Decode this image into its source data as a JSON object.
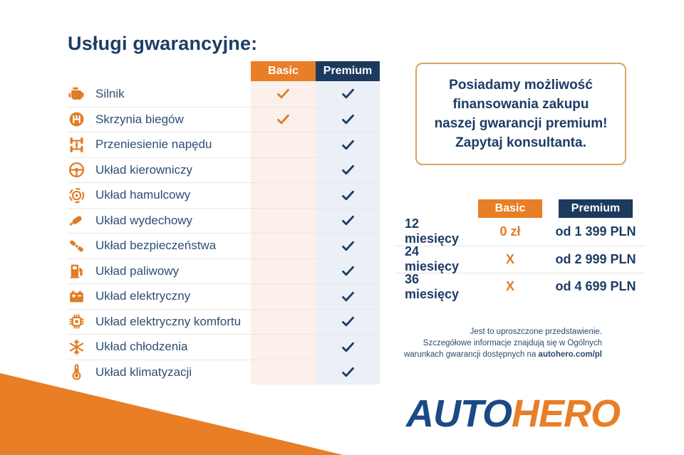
{
  "page": {
    "title": "Usługi gwarancyjne:"
  },
  "services": {
    "columns": [
      "Basic",
      "Premium"
    ],
    "rows": [
      {
        "icon": "engine-icon",
        "label": "Silnik",
        "basic": true,
        "premium": true
      },
      {
        "icon": "gearbox-icon",
        "label": "Skrzynia biegów",
        "basic": true,
        "premium": true
      },
      {
        "icon": "drivetrain-icon",
        "label": "Przeniesienie napędu",
        "basic": false,
        "premium": true
      },
      {
        "icon": "steering-wheel-icon",
        "label": "Układ kierowniczy",
        "basic": false,
        "premium": true
      },
      {
        "icon": "brake-disc-icon",
        "label": "Układ hamulcowy",
        "basic": false,
        "premium": true
      },
      {
        "icon": "exhaust-icon",
        "label": "Układ wydechowy",
        "basic": false,
        "premium": true
      },
      {
        "icon": "seatbelt-icon",
        "label": "Układ bezpieczeństwa",
        "basic": false,
        "premium": true
      },
      {
        "icon": "fuel-pump-icon",
        "label": "Układ paliwowy",
        "basic": false,
        "premium": true
      },
      {
        "icon": "battery-icon",
        "label": "Układ elektryczny",
        "basic": false,
        "premium": true
      },
      {
        "icon": "chip-icon",
        "label": "Układ elektryczny komfortu",
        "basic": false,
        "premium": true
      },
      {
        "icon": "snowflake-icon",
        "label": "Układ chłodzenia",
        "basic": false,
        "premium": true
      },
      {
        "icon": "thermometer-icon",
        "label": "Układ klimatyzacji",
        "basic": false,
        "premium": true
      }
    ]
  },
  "promo_box": {
    "lines": [
      "Posiadamy możliwość",
      "finansowania zakupu",
      "naszej gwarancji premium!",
      "Zapytaj konsultanta."
    ]
  },
  "pricing": {
    "columns": [
      "Basic",
      "Premium"
    ],
    "rows": [
      {
        "period": "12 miesięcy",
        "basic": "0 zł",
        "premium": "od 1 399 PLN"
      },
      {
        "period": "24 miesięcy",
        "basic": "X",
        "premium": "od 2 999 PLN"
      },
      {
        "period": "36 miesięcy",
        "basic": "X",
        "premium": "od 4 699 PLN"
      }
    ]
  },
  "disclaimer": {
    "line1": "Jest to uproszczone przedstawienie.",
    "line2": "Szczegółowe informacje znajdują się w Ogólnych",
    "line3_prefix": "warunkach gwarancji dostępnych na ",
    "link": "autohero.com/pl"
  },
  "logo": {
    "part1": "AUTO",
    "part2": "HERO"
  },
  "colors": {
    "orange": "#E87E26",
    "navy": "#1C3A5E",
    "text_navy": "#2E4E74",
    "logo_blue": "#1B4A84",
    "basic_column_bg": "#FBF0EA",
    "premium_column_bg": "#EBEFF6",
    "promo_border": "#DBA264"
  }
}
